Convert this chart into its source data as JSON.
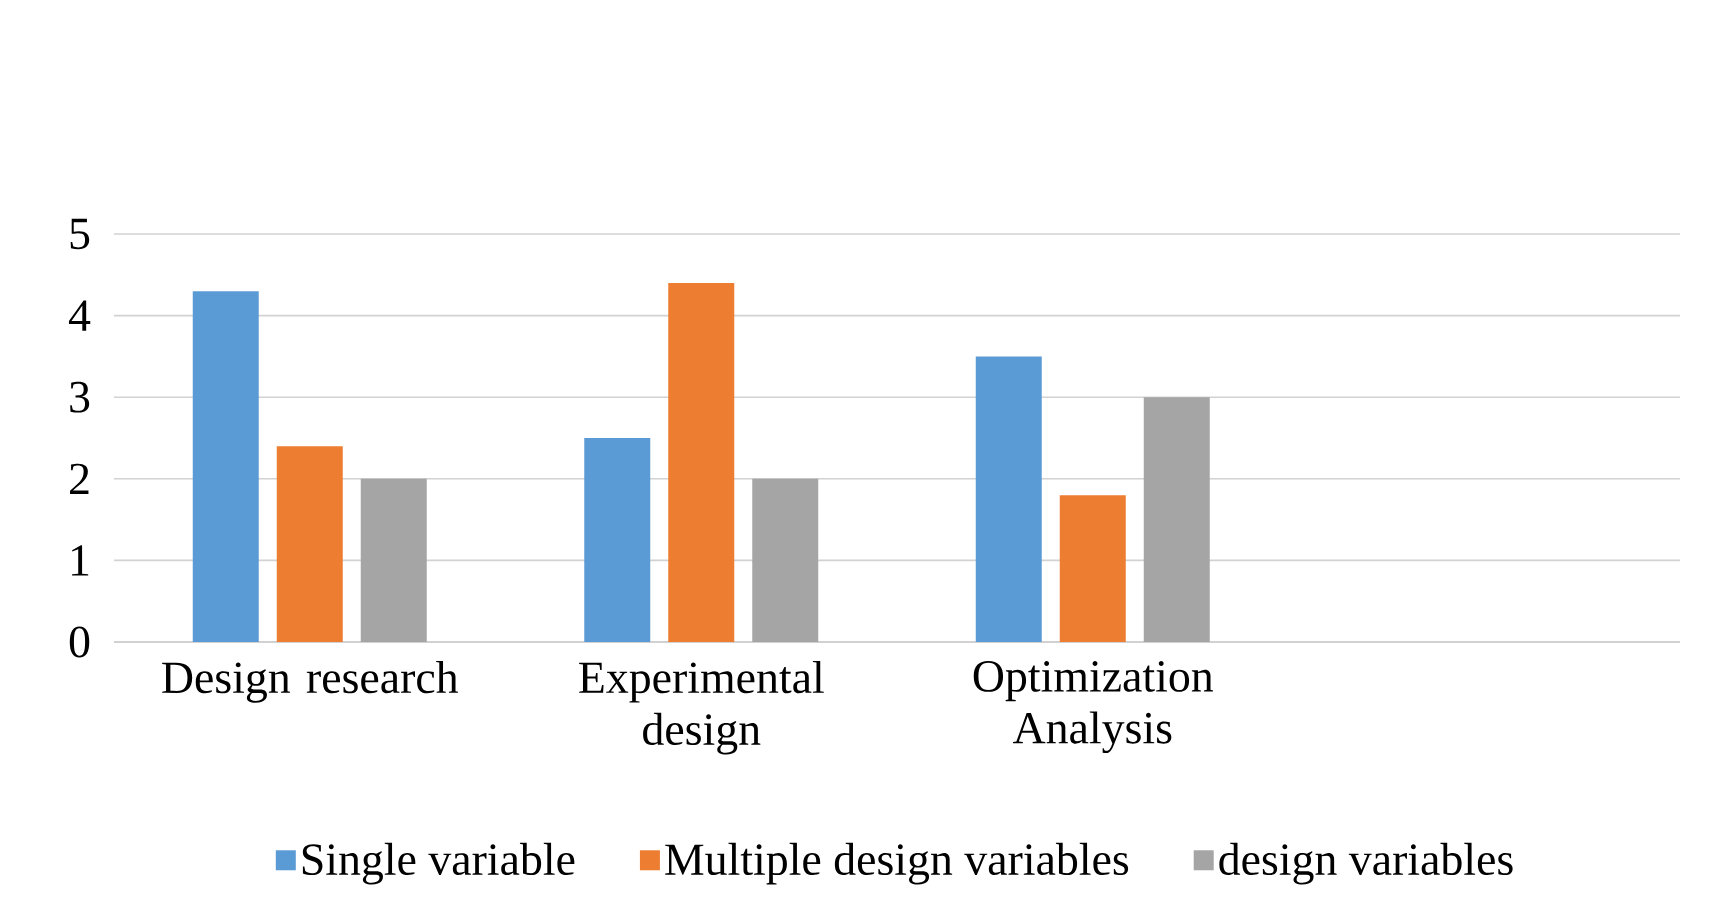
{
  "chart_data": {
    "type": "bar",
    "categories": [
      "Design research",
      "Experimental design",
      "Optimization Analysis",
      null
    ],
    "series": [
      {
        "name": "Single variable",
        "color": "#5b9bd5",
        "values": [
          4.3,
          2.5,
          3.5,
          null
        ]
      },
      {
        "name": "Multiple design variables",
        "color": "#ed7d31",
        "values": [
          2.4,
          4.4,
          1.8,
          null
        ]
      },
      {
        "name": "design variables",
        "color": "#a5a5a5",
        "values": [
          2,
          2,
          3,
          null
        ]
      }
    ],
    "ylim": [
      0,
      5
    ],
    "yticks": [
      0,
      1,
      2,
      3,
      4,
      5
    ],
    "grid": "y",
    "legend": "bottom"
  }
}
